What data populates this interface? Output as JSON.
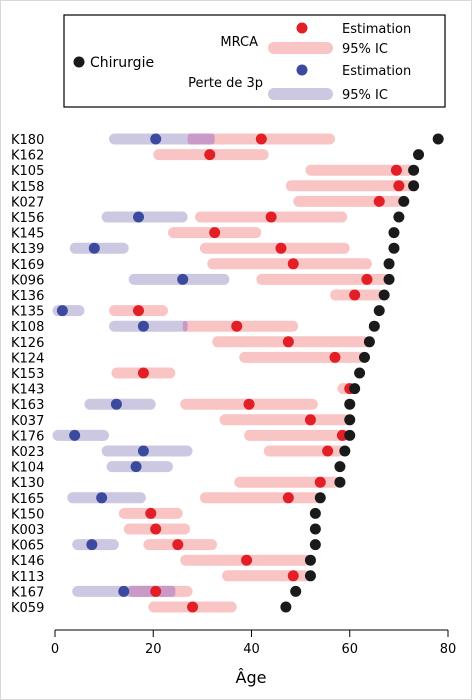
{
  "chart_data": {
    "type": "range-dot",
    "xlabel": "Âge",
    "xlim": [
      0,
      80
    ],
    "xticks": [
      "0",
      "20",
      "40",
      "60",
      "80"
    ],
    "legend": {
      "placement": "top",
      "chirurgie": "Chirurgie",
      "mrca_title": "MRCA",
      "mrca_estimate": "Estimation",
      "mrca_ci": "95% IC",
      "loss_title": "Perte de 3p",
      "loss_estimate": "Estimation",
      "loss_ci": "95% IC"
    },
    "colors": {
      "chirurgie": "#1a1a1a",
      "mrca_dot": "#e21f26",
      "mrca_ci": "#f9c4c4",
      "loss_dot": "#3b4a9e",
      "loss_ci": "#ccc8e2",
      "overlap": "#c99ac8"
    },
    "series": [
      {
        "name": "K180",
        "chirurgie": 78,
        "mrca": 42,
        "mrca_ci": [
          27,
          57
        ],
        "loss": 20.5,
        "loss_ci": [
          11,
          32.5
        ]
      },
      {
        "name": "K162",
        "chirurgie": 74,
        "mrca": 31.5,
        "mrca_ci": [
          20,
          43.5
        ]
      },
      {
        "name": "K105",
        "chirurgie": 73,
        "mrca": 69.5,
        "mrca_ci": [
          51,
          73
        ]
      },
      {
        "name": "K158",
        "chirurgie": 73,
        "mrca": 70,
        "mrca_ci": [
          47,
          73
        ]
      },
      {
        "name": "K027",
        "chirurgie": 71,
        "mrca": 66,
        "mrca_ci": [
          48.5,
          71
        ]
      },
      {
        "name": "K156",
        "chirurgie": 70,
        "mrca": 44,
        "mrca_ci": [
          28.5,
          59.5
        ],
        "loss": 17,
        "loss_ci": [
          9.5,
          27
        ]
      },
      {
        "name": "K145",
        "chirurgie": 69,
        "mrca": 32.5,
        "mrca_ci": [
          23,
          42
        ]
      },
      {
        "name": "K139",
        "chirurgie": 69,
        "mrca": 46,
        "mrca_ci": [
          29.5,
          60
        ],
        "loss": 8,
        "loss_ci": [
          3,
          15
        ]
      },
      {
        "name": "K169",
        "chirurgie": 68,
        "mrca": 48.5,
        "mrca_ci": [
          31,
          64.5
        ]
      },
      {
        "name": "K096",
        "chirurgie": 68,
        "mrca": 63.5,
        "mrca_ci": [
          41,
          68
        ],
        "loss": 26,
        "loss_ci": [
          15,
          35.5
        ]
      },
      {
        "name": "K136",
        "chirurgie": 67,
        "mrca": 61,
        "mrca_ci": [
          56,
          67
        ]
      },
      {
        "name": "K135",
        "chirurgie": 66,
        "mrca": 17,
        "mrca_ci": [
          11,
          23
        ],
        "loss": 1.5,
        "loss_ci": [
          -0.5,
          6
        ]
      },
      {
        "name": "K108",
        "chirurgie": 65,
        "mrca": 37,
        "mrca_ci": [
          26,
          49.5
        ],
        "loss": 18,
        "loss_ci": [
          11,
          27
        ]
      },
      {
        "name": "K126",
        "chirurgie": 64,
        "mrca": 47.5,
        "mrca_ci": [
          32,
          64
        ]
      },
      {
        "name": "K124",
        "chirurgie": 63,
        "mrca": 57,
        "mrca_ci": [
          37.5,
          63
        ]
      },
      {
        "name": "K153",
        "chirurgie": 62,
        "mrca": 18,
        "mrca_ci": [
          11.5,
          24.5
        ]
      },
      {
        "name": "K143",
        "chirurgie": 61,
        "mrca": 60,
        "mrca_ci": [
          57.5,
          61
        ]
      },
      {
        "name": "K163",
        "chirurgie": 60,
        "mrca": 39.5,
        "mrca_ci": [
          25.5,
          53.5
        ],
        "loss": 12.5,
        "loss_ci": [
          6,
          20.5
        ]
      },
      {
        "name": "K037",
        "chirurgie": 60,
        "mrca": 52,
        "mrca_ci": [
          33.5,
          60
        ]
      },
      {
        "name": "K176",
        "chirurgie": 60,
        "mrca": 58.5,
        "mrca_ci": [
          38.5,
          60
        ],
        "loss": 4,
        "loss_ci": [
          -0.5,
          11
        ]
      },
      {
        "name": "K023",
        "chirurgie": 59,
        "mrca": 55.5,
        "mrca_ci": [
          42.5,
          59
        ],
        "loss": 18,
        "loss_ci": [
          9.5,
          28
        ]
      },
      {
        "name": "K104",
        "chirurgie": 58,
        "loss": 16.5,
        "loss_ci": [
          10.5,
          24
        ]
      },
      {
        "name": "K130",
        "chirurgie": 58,
        "mrca": 54,
        "mrca_ci": [
          36.5,
          58
        ]
      },
      {
        "name": "K165",
        "chirurgie": 54,
        "mrca": 47.5,
        "mrca_ci": [
          29.5,
          54
        ],
        "loss": 9.5,
        "loss_ci": [
          2.5,
          18.5
        ]
      },
      {
        "name": "K150",
        "chirurgie": 53,
        "mrca": 19.5,
        "mrca_ci": [
          13,
          26
        ]
      },
      {
        "name": "K003",
        "chirurgie": 53,
        "mrca": 20.5,
        "mrca_ci": [
          14,
          27.5
        ]
      },
      {
        "name": "K065",
        "chirurgie": 53,
        "mrca": 25,
        "mrca_ci": [
          18,
          33
        ],
        "loss": 7.5,
        "loss_ci": [
          3.5,
          13
        ]
      },
      {
        "name": "K146",
        "chirurgie": 52,
        "mrca": 39,
        "mrca_ci": [
          25.5,
          52
        ]
      },
      {
        "name": "K113",
        "chirurgie": 52,
        "mrca": 48.5,
        "mrca_ci": [
          34,
          52
        ]
      },
      {
        "name": "K167",
        "chirurgie": 49,
        "mrca": 20.5,
        "mrca_ci": [
          15,
          28
        ],
        "loss": 14,
        "loss_ci": [
          3.5,
          24.5
        ]
      },
      {
        "name": "K059",
        "chirurgie": 47,
        "mrca": 28,
        "mrca_ci": [
          19,
          37
        ]
      }
    ]
  }
}
